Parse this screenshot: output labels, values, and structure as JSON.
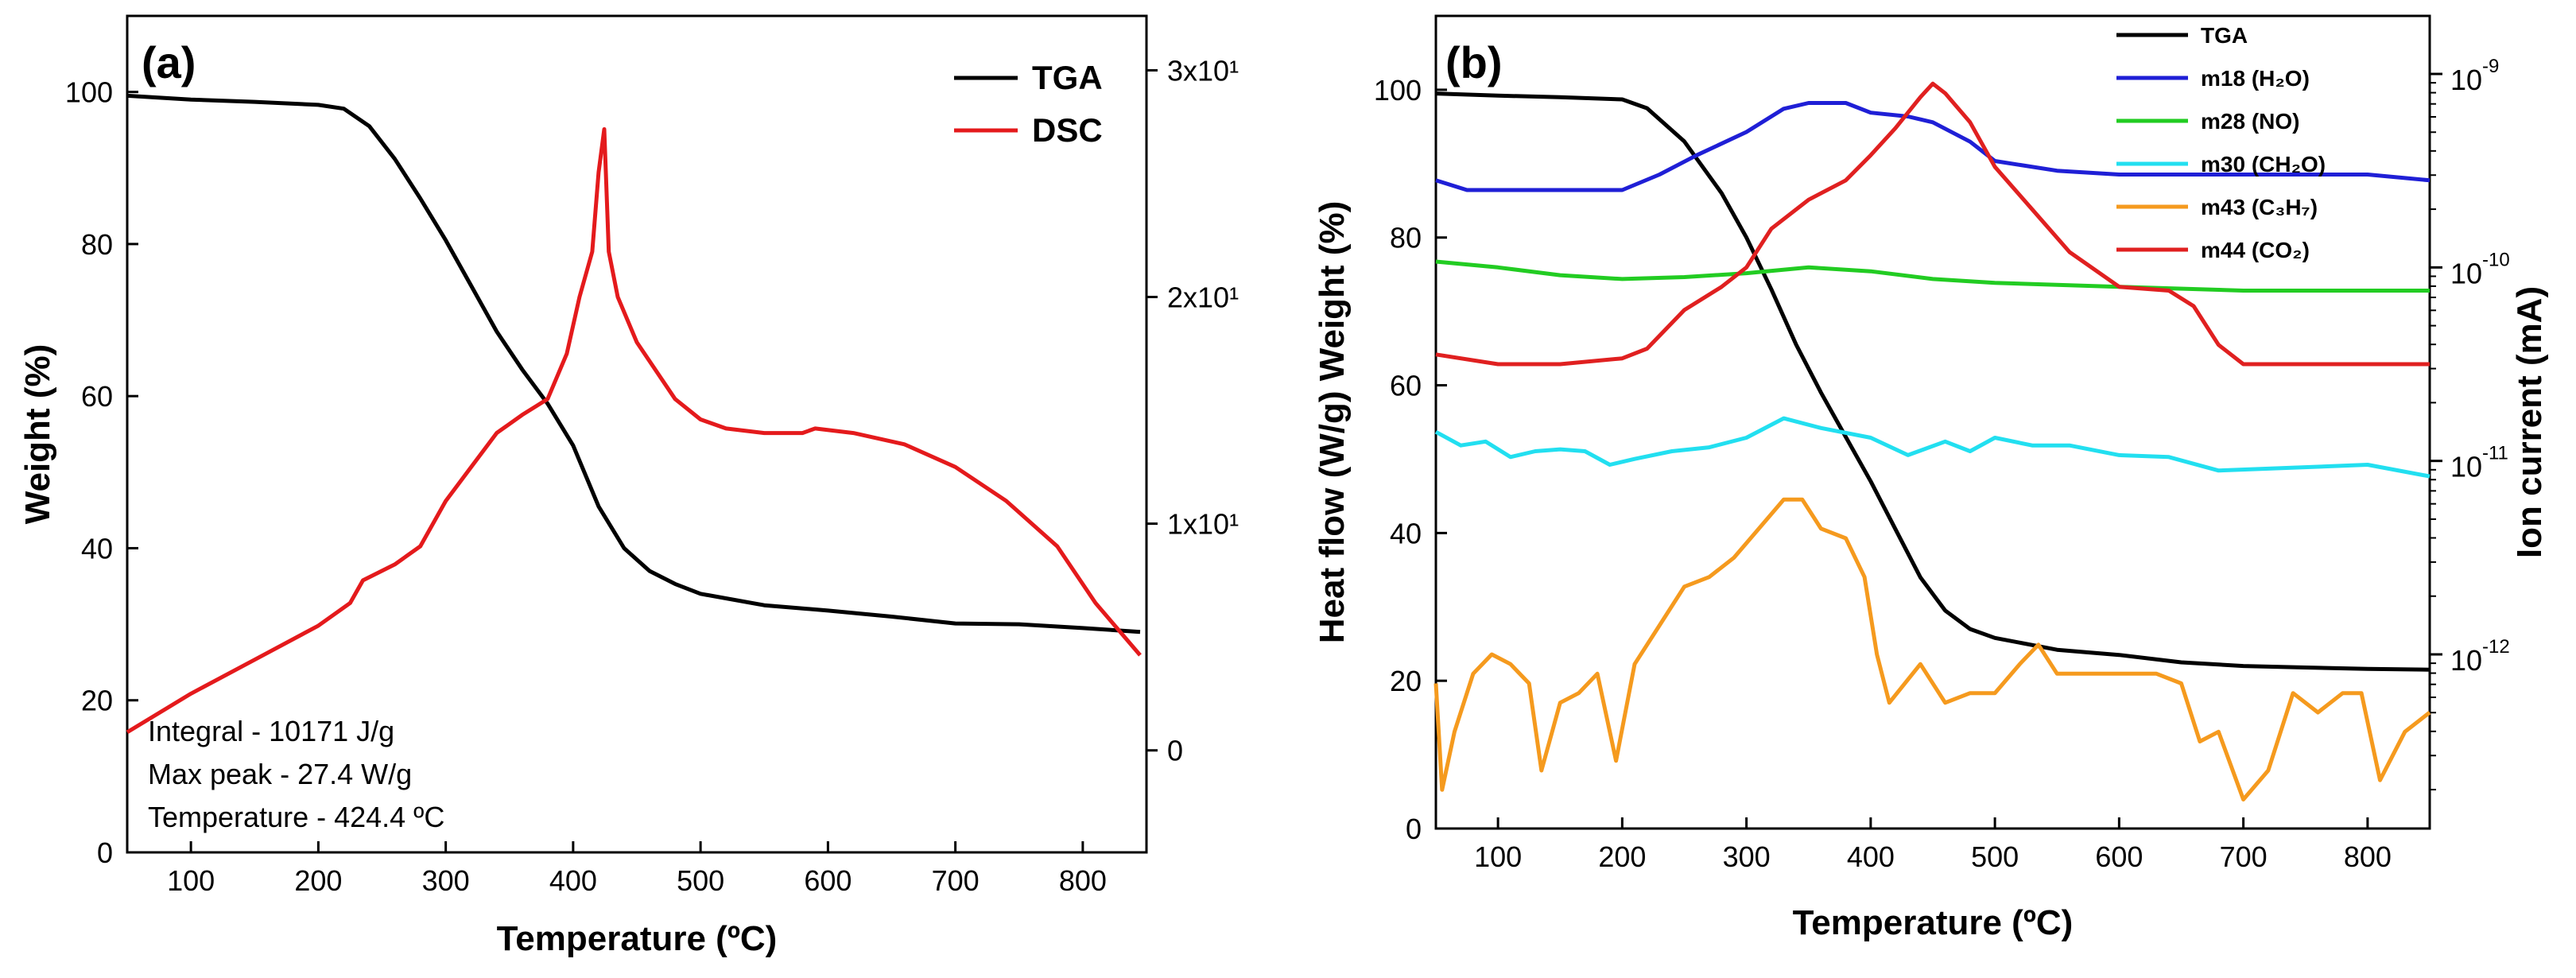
{
  "chart_data": [
    {
      "panel": "(a)",
      "type": "line",
      "xlabel": "Temperature (ºC)",
      "ylabel": "Weight (%)",
      "y2label": "",
      "xlim": [
        50,
        850
      ],
      "ylim": [
        0,
        110
      ],
      "y2lim": [
        -4.5,
        32.4
      ],
      "xticks": [
        100,
        200,
        300,
        400,
        500,
        600,
        700,
        800
      ],
      "yticks": [
        0,
        20,
        40,
        60,
        80,
        100
      ],
      "y2ticks": [
        {
          "value": 0,
          "label": "0"
        },
        {
          "value": 10,
          "label": "1x10¹"
        },
        {
          "value": 20,
          "label": "2x10¹"
        },
        {
          "value": 30,
          "label": "3x10¹"
        }
      ],
      "legend_position": "top-right",
      "annotations": [
        "Integral - 10171 J/g",
        "Max peak - 27.4 W/g",
        "Temperature - 424.4 ºC"
      ],
      "series": [
        {
          "name": "TGA",
          "axis": "left",
          "color": "#000000",
          "x": [
            50,
            100,
            150,
            200,
            220,
            240,
            260,
            280,
            300,
            320,
            340,
            360,
            380,
            400,
            420,
            440,
            460,
            480,
            500,
            550,
            600,
            650,
            700,
            750,
            800,
            845
          ],
          "y": [
            99.5,
            99.0,
            98.7,
            98.3,
            97.8,
            95.5,
            91.2,
            86.0,
            80.5,
            74.5,
            68.5,
            63.5,
            59.0,
            53.5,
            45.5,
            40.0,
            37.0,
            35.3,
            34.0,
            32.5,
            31.8,
            31.0,
            30.1,
            30.0,
            29.5,
            29.0
          ]
        },
        {
          "name": "DSC",
          "axis": "right",
          "color": "#e41a1c",
          "x": [
            50,
            100,
            150,
            200,
            225,
            235,
            260,
            280,
            300,
            320,
            340,
            360,
            380,
            395,
            405,
            415,
            420,
            424.4,
            428,
            435,
            450,
            480,
            500,
            520,
            550,
            580,
            590,
            620,
            660,
            700,
            740,
            780,
            810,
            845
          ],
          "y": [
            0.8,
            2.5,
            4.0,
            5.5,
            6.5,
            7.5,
            8.2,
            9.0,
            11.0,
            12.5,
            14.0,
            14.8,
            15.5,
            17.5,
            20.0,
            22.0,
            25.5,
            27.4,
            22.0,
            20.0,
            18.0,
            15.5,
            14.6,
            14.2,
            14.0,
            14.0,
            14.2,
            14.0,
            13.5,
            12.5,
            11.0,
            9.0,
            6.5,
            4.2
          ]
        }
      ]
    },
    {
      "panel": "(b)",
      "type": "line",
      "xlabel": "Temperature (ºC)",
      "ylabel": "Heat flow (W/g) Weight (%)",
      "y2label": "Ion current (mA)",
      "xlim": [
        50,
        850
      ],
      "ylim": [
        0,
        110
      ],
      "y2lim_log10": [
        -12.9,
        -8.7
      ],
      "y2scale": "log",
      "xticks": [
        100,
        200,
        300,
        400,
        500,
        600,
        700,
        800
      ],
      "yticks": [
        0,
        20,
        40,
        60,
        80,
        100
      ],
      "y2ticks": [
        {
          "exp": -12,
          "label": "10"
        },
        {
          "exp": -11,
          "label": "10"
        },
        {
          "exp": -10,
          "label": "10"
        },
        {
          "exp": -9,
          "label": "10"
        }
      ],
      "legend_position": "top-right",
      "series": [
        {
          "name": "TGA",
          "axis": "left",
          "color": "#000000",
          "x": [
            50,
            100,
            150,
            200,
            220,
            250,
            280,
            300,
            320,
            340,
            360,
            380,
            400,
            420,
            440,
            460,
            480,
            500,
            550,
            600,
            650,
            700,
            750,
            800,
            850
          ],
          "y": [
            99.5,
            99.2,
            99.0,
            98.7,
            97.5,
            93.0,
            86.0,
            80.0,
            73.0,
            65.5,
            59.0,
            53.0,
            47.0,
            40.5,
            34.0,
            29.5,
            27.0,
            25.8,
            24.2,
            23.5,
            22.5,
            22.0,
            21.8,
            21.6,
            21.5
          ]
        },
        {
          "name": "m18 (H₂O)",
          "axis": "log",
          "color": "#1f1fd6",
          "x": [
            50,
            75,
            100,
            150,
            200,
            230,
            260,
            300,
            330,
            350,
            380,
            400,
            430,
            450,
            480,
            500,
            550,
            600,
            650,
            700,
            750,
            800,
            850
          ],
          "log10": [
            -9.55,
            -9.6,
            -9.6,
            -9.6,
            -9.6,
            -9.52,
            -9.42,
            -9.3,
            -9.18,
            -9.15,
            -9.15,
            -9.2,
            -9.22,
            -9.25,
            -9.35,
            -9.45,
            -9.5,
            -9.52,
            -9.52,
            -9.52,
            -9.52,
            -9.52,
            -9.55
          ]
        },
        {
          "name": "m28 (NO)",
          "axis": "log",
          "color": "#22cc22",
          "x": [
            50,
            100,
            150,
            200,
            250,
            300,
            350,
            400,
            450,
            500,
            600,
            700,
            800,
            850
          ],
          "log10": [
            -9.97,
            -10.0,
            -10.04,
            -10.06,
            -10.05,
            -10.03,
            -10.0,
            -10.02,
            -10.06,
            -10.08,
            -10.1,
            -10.12,
            -10.12,
            -10.12
          ]
        },
        {
          "name": "m30 (CH₂O)",
          "axis": "log",
          "color": "#22dff0",
          "x": [
            50,
            70,
            90,
            110,
            130,
            150,
            170,
            190,
            210,
            240,
            270,
            300,
            330,
            360,
            400,
            430,
            460,
            480,
            500,
            530,
            560,
            600,
            640,
            680,
            720,
            760,
            800,
            850
          ],
          "log10": [
            -10.85,
            -10.92,
            -10.9,
            -10.98,
            -10.95,
            -10.94,
            -10.95,
            -11.02,
            -10.99,
            -10.95,
            -10.93,
            -10.88,
            -10.78,
            -10.83,
            -10.88,
            -10.97,
            -10.9,
            -10.95,
            -10.88,
            -10.92,
            -10.92,
            -10.97,
            -10.98,
            -11.05,
            -11.04,
            -11.03,
            -11.02,
            -11.08
          ]
        },
        {
          "name": "m43 (C₃H₇)",
          "axis": "log",
          "color": "#f59a1e",
          "x": [
            50,
            55,
            65,
            80,
            95,
            110,
            125,
            135,
            150,
            165,
            180,
            195,
            210,
            230,
            250,
            270,
            290,
            310,
            330,
            345,
            360,
            380,
            395,
            405,
            415,
            440,
            460,
            480,
            500,
            520,
            535,
            550,
            570,
            590,
            610,
            630,
            650,
            665,
            680,
            700,
            720,
            740,
            760,
            780,
            795,
            810,
            830,
            850
          ],
          "log10": [
            -12.15,
            -12.7,
            -12.4,
            -12.1,
            -12.0,
            -12.05,
            -12.15,
            -12.6,
            -12.25,
            -12.2,
            -12.1,
            -12.55,
            -12.05,
            -11.85,
            -11.65,
            -11.6,
            -11.5,
            -11.35,
            -11.2,
            -11.2,
            -11.35,
            -11.4,
            -11.6,
            -12.0,
            -12.25,
            -12.05,
            -12.25,
            -12.2,
            -12.2,
            -12.05,
            -11.95,
            -12.1,
            -12.1,
            -12.1,
            -12.1,
            -12.1,
            -12.15,
            -12.45,
            -12.4,
            -12.75,
            -12.6,
            -12.2,
            -12.3,
            -12.2,
            -12.2,
            -12.65,
            -12.4,
            -12.3
          ]
        },
        {
          "name": "m44 (CO₂)",
          "axis": "log",
          "color": "#e02020",
          "x": [
            50,
            100,
            150,
            200,
            220,
            250,
            280,
            300,
            320,
            350,
            380,
            400,
            420,
            440,
            450,
            460,
            480,
            500,
            530,
            560,
            600,
            640,
            660,
            680,
            700,
            750,
            800,
            850
          ],
          "log10": [
            -10.45,
            -10.5,
            -10.5,
            -10.47,
            -10.42,
            -10.22,
            -10.1,
            -10.0,
            -9.8,
            -9.65,
            -9.55,
            -9.42,
            -9.28,
            -9.12,
            -9.05,
            -9.1,
            -9.25,
            -9.48,
            -9.7,
            -9.92,
            -10.1,
            -10.12,
            -10.2,
            -10.4,
            -10.5,
            -10.5,
            -10.5,
            -10.5
          ]
        }
      ]
    }
  ]
}
